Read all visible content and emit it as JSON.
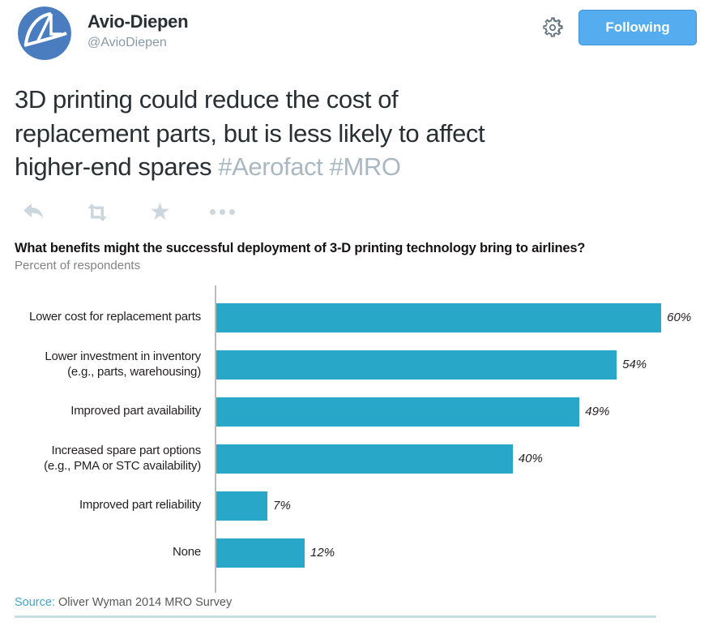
{
  "header": {
    "name": "Avio-Diepen",
    "handle": "@AvioDiepen",
    "follow_label": "Following",
    "follow_button_color": "#55acee",
    "avatar_color": "#4a7dbf"
  },
  "tweet": {
    "text_lines": [
      "3D printing could reduce the cost of",
      "replacement parts, but is less likely to affect",
      "higher-end spares"
    ],
    "hashtag1": "#Aerofact",
    "hashtag2": "#MRO",
    "hashtag_color": "#aab8c2"
  },
  "actions": {
    "items": [
      "reply",
      "retweet",
      "favorite",
      "more"
    ]
  },
  "chart_data": {
    "type": "bar",
    "orientation": "horizontal",
    "title": "What benefits might the successful deployment of 3-D printing technology bring to airlines?",
    "subtitle": "Percent of respondents",
    "categories": [
      "Lower cost for replacement parts",
      "Lower investment in inventory (e.g., parts, warehousing)",
      "Improved part availability",
      "Increased spare part options (e.g., PMA or STC availability)",
      "Improved part reliability",
      "None"
    ],
    "values": [
      60,
      54,
      49,
      40,
      7,
      12
    ],
    "rows": [
      {
        "line1": "Lower cost for replacement parts",
        "line2": "",
        "value": 60,
        "value_label": "60%"
      },
      {
        "line1": "Lower investment in inventory",
        "line2": "(e.g., parts, warehousing)",
        "value": 54,
        "value_label": "54%"
      },
      {
        "line1": "Improved part availability",
        "line2": "",
        "value": 49,
        "value_label": "49%"
      },
      {
        "line1": "Increased spare part options",
        "line2": "(e.g., PMA or STC availability)",
        "value": 40,
        "value_label": "40%"
      },
      {
        "line1": "Improved part reliability",
        "line2": "",
        "value": 7,
        "value_label": "7%"
      },
      {
        "line1": "None",
        "line2": "",
        "value": 12,
        "value_label": "12%"
      }
    ],
    "xlim": [
      0,
      65
    ],
    "grid": false,
    "legend": false,
    "bar_color": "#29a7c9",
    "source_label": "Source:",
    "source_text": " Oliver Wyman 2014 MRO Survey",
    "source_accent_color": "#45a5c7"
  }
}
